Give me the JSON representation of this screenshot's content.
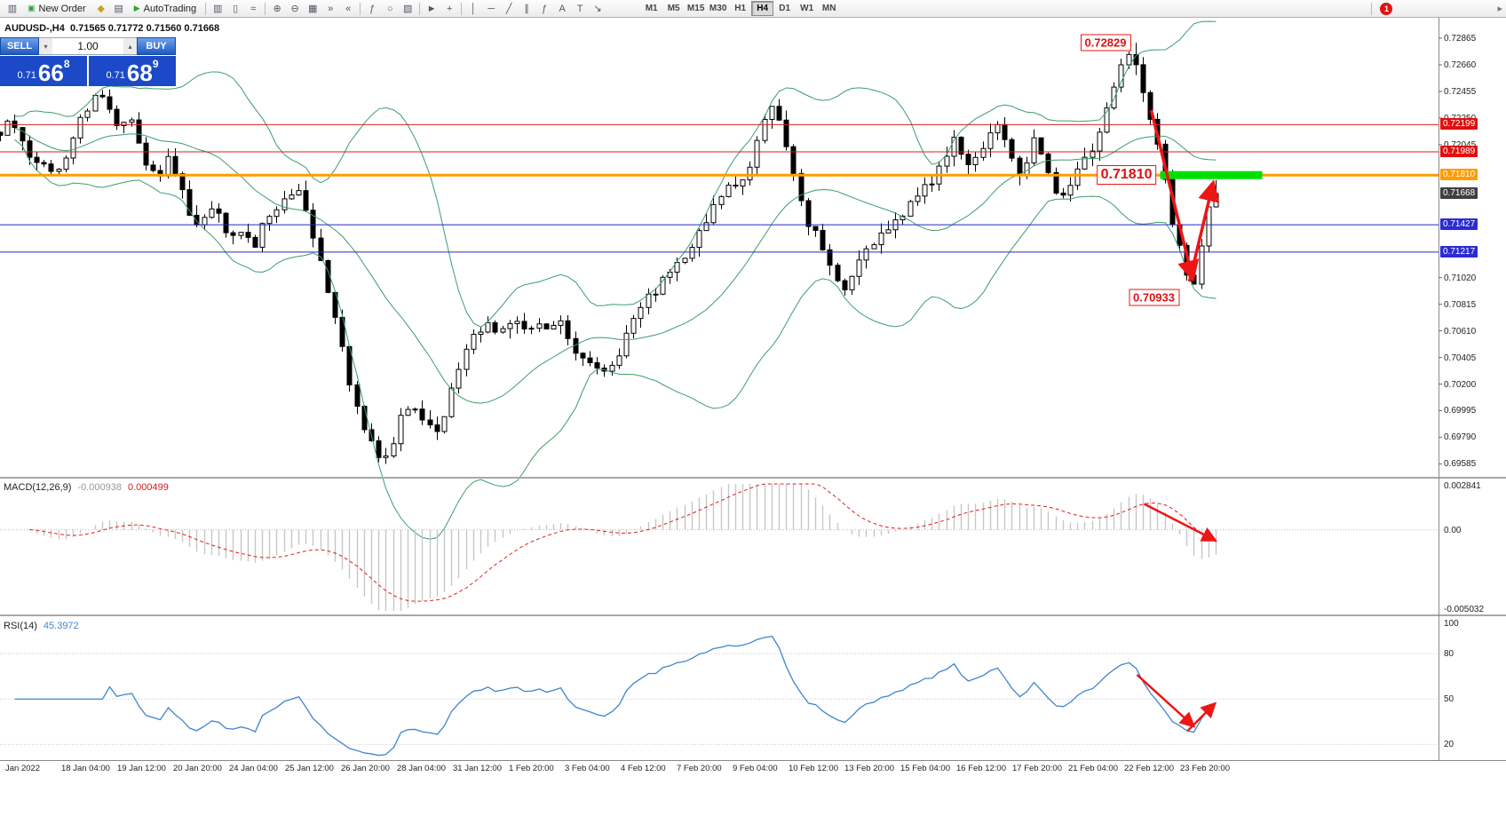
{
  "toolbar": {
    "notification_count": "1",
    "overflow_glyph": "▸",
    "items": [
      {
        "t": "icon",
        "name": "chart-window-icon",
        "glyph": "▥"
      },
      {
        "t": "btn",
        "name": "new-order-button",
        "icon": "▣",
        "icon_color": "#2f9e44",
        "label": "New Order"
      },
      {
        "t": "icon",
        "name": "mql5-market-icon",
        "glyph": "◆",
        "color": "#c9a227"
      },
      {
        "t": "icon",
        "name": "profiles-icon",
        "glyph": "▤"
      },
      {
        "t": "btn",
        "name": "autotrading-button",
        "icon": "▶",
        "icon_color": "#28a428",
        "label": "AutoTrading"
      },
      {
        "t": "sep"
      },
      {
        "t": "icon",
        "name": "bars-icon",
        "glyph": "▥"
      },
      {
        "t": "icon",
        "name": "candles-icon",
        "glyph": "▯"
      },
      {
        "t": "icon",
        "name": "line-chart-icon",
        "glyph": "≈"
      },
      {
        "t": "sep"
      },
      {
        "t": "icon",
        "name": "zoom-in-icon",
        "glyph": "⊕"
      },
      {
        "t": "icon",
        "name": "zoom-out-icon",
        "glyph": "⊖"
      },
      {
        "t": "icon",
        "name": "tile-windows-icon",
        "glyph": "▦"
      },
      {
        "t": "icon",
        "name": "auto-scroll-icon",
        "glyph": "»"
      },
      {
        "t": "icon",
        "name": "chart-shift-icon",
        "glyph": "«"
      },
      {
        "t": "sep"
      },
      {
        "t": "icon",
        "name": "indicators-icon",
        "glyph": "ƒ"
      },
      {
        "t": "icon",
        "name": "periods-icon",
        "glyph": "○"
      },
      {
        "t": "icon",
        "name": "templates-icon",
        "glyph": "▧"
      },
      {
        "t": "sep"
      },
      {
        "t": "icon",
        "name": "cursor-icon",
        "glyph": "►"
      },
      {
        "t": "icon",
        "name": "crosshair-icon",
        "glyph": "+"
      },
      {
        "t": "sep"
      },
      {
        "t": "icon",
        "name": "vertical-line-icon",
        "glyph": "│"
      },
      {
        "t": "icon",
        "name": "horizontal-line-icon",
        "glyph": "─"
      },
      {
        "t": "icon",
        "name": "trendline-icon",
        "glyph": "╱"
      },
      {
        "t": "icon",
        "name": "channel-icon",
        "glyph": "∥"
      },
      {
        "t": "icon",
        "name": "fibonacci-icon",
        "glyph": "ƒ"
      },
      {
        "t": "icon",
        "name": "text-icon",
        "glyph": "A"
      },
      {
        "t": "icon",
        "name": "label-icon",
        "glyph": "T"
      },
      {
        "t": "icon",
        "name": "arrows-icon",
        "glyph": "↘"
      }
    ],
    "timeframes": [
      {
        "label": "M1"
      },
      {
        "label": "M5"
      },
      {
        "label": "M15"
      },
      {
        "label": "M30"
      },
      {
        "label": "H1"
      },
      {
        "label": "H4",
        "active": true
      },
      {
        "label": "D1"
      },
      {
        "label": "W1"
      },
      {
        "label": "MN"
      }
    ]
  },
  "chart": {
    "ohlc_line": "AUDUSD-,H4  0.71565 0.71772 0.71560 0.71668"
  },
  "trade_panel": {
    "sell_label": "SELL",
    "buy_label": "BUY",
    "volume": "1.00",
    "sell_prefix": "0.71",
    "sell_big": "66",
    "sell_sup": "8",
    "buy_prefix": "0.71",
    "buy_big": "68",
    "buy_sup": "9",
    "vol_down_glyph": "▾",
    "vol_up_glyph": "▴"
  },
  "price_axis": {
    "regular": [
      "0.72865",
      "0.72660",
      "0.72455",
      "0.72250",
      "0.72045",
      "0.71020",
      "0.70815",
      "0.70610",
      "0.70405",
      "0.70200",
      "0.69995",
      "0.69790",
      "0.69585"
    ],
    "highlighted": [
      {
        "text": "0.72199",
        "bg": "#e01010"
      },
      {
        "text": "0.71989",
        "bg": "#e01010"
      },
      {
        "text": "0.71810",
        "bg": "#ff9c00"
      },
      {
        "text": "0.71668",
        "bg": "#3f3f3f"
      },
      {
        "text": "0.71427",
        "bg": "#2b2bd0"
      },
      {
        "text": "0.71217",
        "bg": "#2b2bd0"
      }
    ]
  },
  "hlines": [
    {
      "price": 0.72199,
      "color": "#d82020",
      "w": 1
    },
    {
      "price": 0.71989,
      "color": "#d82020",
      "w": 1
    },
    {
      "price": 0.7181,
      "color": "#ff9c00",
      "w": 3
    },
    {
      "price": 0.71427,
      "color": "#2828c8",
      "w": 1
    },
    {
      "price": 0.71217,
      "color": "#2828c8",
      "w": 1
    }
  ],
  "indicators": {
    "macd_label": "MACD(12,26,9)",
    "macd_value1": "-0.000938",
    "macd_value2": "0.000499",
    "macd_axis": [
      "0.002841",
      "0.00",
      "-0.005032"
    ],
    "rsi_label": "RSI(14)",
    "rsi_value": "45.3972",
    "rsi_axis": [
      "100",
      "80",
      "50",
      "20"
    ]
  },
  "time_axis": [
    "Jan 2022",
    "18 Jan 04:00",
    "19 Jan 12:00",
    "20 Jan 20:00",
    "24 Jan 04:00",
    "25 Jan 12:00",
    "26 Jan 20:00",
    "28 Jan 04:00",
    "31 Jan 12:00",
    "1 Feb 20:00",
    "3 Feb 04:00",
    "4 Feb 12:00",
    "7 Feb 20:00",
    "9 Feb 04:00",
    "10 Feb 12:00",
    "13 Feb 20:00",
    "15 Feb 04:00",
    "16 Feb 12:00",
    "17 Feb 20:00",
    "21 Feb 04:00",
    "22 Feb 12:00",
    "23 Feb 20:00"
  ],
  "annotations": {
    "arrow_color": "#ee1515",
    "callouts": [
      {
        "text": "0.72829",
        "fx": 0.786,
        "price": 0.72829,
        "anchor": "right"
      },
      {
        "text": "0.71810",
        "fx": 0.8035,
        "price": 0.7181,
        "anchor": "right"
      },
      {
        "text": "0.70933",
        "fx": 0.802,
        "price": 0.7087,
        "anchor": "center"
      }
    ],
    "green_bar": {
      "f1": 0.806,
      "f2": 0.877,
      "price": 0.7181,
      "height": 9,
      "color": "#00e000"
    },
    "arrows_main": [
      {
        "pts": [
          [
            0.8,
            0.7231
          ],
          [
            0.8285,
            0.7103
          ]
        ]
      },
      {
        "pts": [
          [
            0.8265,
            0.7099
          ],
          [
            0.8425,
            0.7173
          ]
        ]
      }
    ],
    "arrows_macd": [
      {
        "pts": [
          [
            0.795,
            0.0016
          ],
          [
            0.843,
            -0.0006
          ]
        ]
      }
    ],
    "arrows_rsi": [
      {
        "pts": [
          [
            0.79,
            66
          ],
          [
            0.8285,
            33
          ]
        ]
      },
      {
        "pts": [
          [
            0.825,
            29
          ],
          [
            0.8435,
            46
          ]
        ]
      }
    ]
  },
  "chart_data": {
    "type": "candlestick",
    "symbol": "AUDUSD-",
    "timeframe": "H4",
    "price_range": [
      0.69485,
      0.72995
    ],
    "candle_count": 168,
    "candles_span": 0.845,
    "seed": 12,
    "last_candle": {
      "o": 0.71565,
      "h": 0.71772,
      "l": 0.7156,
      "c": 0.71668
    },
    "high_peak": 0.72829,
    "low_trough": 0.70933,
    "bollinger": {
      "period": 20,
      "dev": 2,
      "color": "#3c9e68"
    },
    "macd": {
      "fast": 12,
      "slow": 26,
      "signal": 9,
      "range": [
        -0.005032,
        0.002841
      ],
      "hist_color": "#c6c6c6",
      "signal_color": "#e02020"
    },
    "rsi": {
      "period": 14,
      "min": 12,
      "levels": [
        80,
        50,
        20
      ],
      "color": "#3f85cf"
    },
    "anchors": [
      [
        0.0,
        0.7214
      ],
      [
        0.008,
        0.722
      ],
      [
        0.016,
        0.7203
      ],
      [
        0.026,
        0.7188
      ],
      [
        0.036,
        0.7179
      ],
      [
        0.046,
        0.72
      ],
      [
        0.056,
        0.7225
      ],
      [
        0.068,
        0.7243
      ],
      [
        0.076,
        0.7236
      ],
      [
        0.084,
        0.7215
      ],
      [
        0.092,
        0.7226
      ],
      [
        0.1,
        0.7196
      ],
      [
        0.108,
        0.7182
      ],
      [
        0.118,
        0.7192
      ],
      [
        0.128,
        0.716
      ],
      [
        0.138,
        0.7143
      ],
      [
        0.148,
        0.7158
      ],
      [
        0.158,
        0.7128
      ],
      [
        0.166,
        0.7141
      ],
      [
        0.176,
        0.7126
      ],
      [
        0.186,
        0.7149
      ],
      [
        0.196,
        0.7162
      ],
      [
        0.206,
        0.7174
      ],
      [
        0.214,
        0.715
      ],
      [
        0.222,
        0.7118
      ],
      [
        0.23,
        0.7085
      ],
      [
        0.238,
        0.7046
      ],
      [
        0.246,
        0.701
      ],
      [
        0.254,
        0.6986
      ],
      [
        0.262,
        0.6969
      ],
      [
        0.27,
        0.6961
      ],
      [
        0.278,
        0.6991
      ],
      [
        0.286,
        0.7006
      ],
      [
        0.294,
        0.6993
      ],
      [
        0.302,
        0.6981
      ],
      [
        0.31,
        0.7001
      ],
      [
        0.318,
        0.7031
      ],
      [
        0.328,
        0.7053
      ],
      [
        0.338,
        0.7066
      ],
      [
        0.35,
        0.7058
      ],
      [
        0.362,
        0.7069
      ],
      [
        0.374,
        0.7061
      ],
      [
        0.386,
        0.7071
      ],
      [
        0.398,
        0.7052
      ],
      [
        0.408,
        0.7036
      ],
      [
        0.418,
        0.7026
      ],
      [
        0.428,
        0.7039
      ],
      [
        0.438,
        0.7061
      ],
      [
        0.448,
        0.7081
      ],
      [
        0.458,
        0.7093
      ],
      [
        0.468,
        0.7109
      ],
      [
        0.478,
        0.7126
      ],
      [
        0.488,
        0.7141
      ],
      [
        0.498,
        0.7159
      ],
      [
        0.508,
        0.7172
      ],
      [
        0.518,
        0.7181
      ],
      [
        0.528,
        0.7211
      ],
      [
        0.535,
        0.7242
      ],
      [
        0.542,
        0.7221
      ],
      [
        0.55,
        0.7191
      ],
      [
        0.558,
        0.7149
      ],
      [
        0.568,
        0.7131
      ],
      [
        0.578,
        0.7109
      ],
      [
        0.588,
        0.7089
      ],
      [
        0.598,
        0.7119
      ],
      [
        0.608,
        0.7129
      ],
      [
        0.618,
        0.7143
      ],
      [
        0.63,
        0.7156
      ],
      [
        0.642,
        0.7173
      ],
      [
        0.654,
        0.7186
      ],
      [
        0.664,
        0.7211
      ],
      [
        0.672,
        0.7193
      ],
      [
        0.682,
        0.7201
      ],
      [
        0.692,
        0.7223
      ],
      [
        0.7,
        0.7201
      ],
      [
        0.71,
        0.7183
      ],
      [
        0.72,
        0.7209
      ],
      [
        0.73,
        0.7173
      ],
      [
        0.74,
        0.7163
      ],
      [
        0.748,
        0.7181
      ],
      [
        0.756,
        0.7193
      ],
      [
        0.764,
        0.7216
      ],
      [
        0.772,
        0.7243
      ],
      [
        0.78,
        0.7266
      ],
      [
        0.788,
        0.7278
      ],
      [
        0.794,
        0.7247
      ],
      [
        0.8,
        0.7222
      ],
      [
        0.806,
        0.7196
      ],
      [
        0.812,
        0.7161
      ],
      [
        0.818,
        0.7131
      ],
      [
        0.824,
        0.7106
      ],
      [
        0.829,
        0.7097
      ],
      [
        0.834,
        0.7121
      ],
      [
        0.839,
        0.7151
      ],
      [
        0.845,
        0.7167
      ]
    ]
  }
}
